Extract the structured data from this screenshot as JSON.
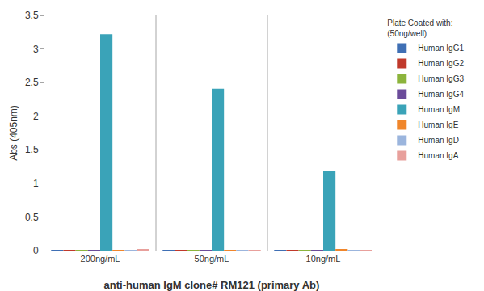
{
  "chart_data": {
    "type": "bar",
    "x_label": "anti-human IgM clone# RM121 (primary Ab)",
    "y_label": "Abs (405nm)",
    "legend_title": [
      "Plate Coated with:",
      "(50ng/well)"
    ],
    "legend": "right",
    "grid": false,
    "categories": [
      "200ng/mL",
      "50ng/mL",
      "10ng/mL"
    ],
    "series": [
      {
        "name": "Human IgG1",
        "color": "#3f6fb4",
        "values": [
          0.005,
          0.004,
          0.012
        ]
      },
      {
        "name": "Human IgG2",
        "color": "#c0392b",
        "values": [
          0.005,
          0.003,
          0.004
        ]
      },
      {
        "name": "Human IgG3",
        "color": "#8cb43c",
        "values": [
          0.012,
          0.004,
          0.004
        ]
      },
      {
        "name": "Human IgG4",
        "color": "#6b4c9a",
        "values": [
          0.004,
          0.003,
          0.004
        ]
      },
      {
        "name": "Human IgM",
        "color": "#3aa3b8",
        "values": [
          3.22,
          2.41,
          1.19
        ]
      },
      {
        "name": "Human IgE",
        "color": "#f0862b",
        "values": [
          0.01,
          0.008,
          0.02
        ]
      },
      {
        "name": "Human IgD",
        "color": "#9bb5dd",
        "values": [
          0.004,
          0.003,
          0.004
        ]
      },
      {
        "name": "Human IgA",
        "color": "#e8a09c",
        "values": [
          0.02,
          0.012,
          0.008
        ]
      }
    ],
    "ylim": [
      0,
      3.5
    ],
    "yticks": [
      0,
      0.5,
      1,
      1.5,
      2,
      2.5,
      3,
      3.5
    ]
  }
}
